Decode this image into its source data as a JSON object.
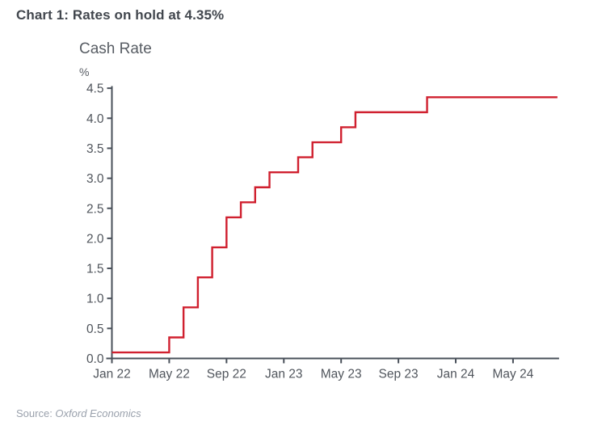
{
  "title": "Chart 1: Rates on hold at 4.35%",
  "source": {
    "prefix": "Source: ",
    "name": "Oxford Economics"
  },
  "chart_data": {
    "type": "line",
    "subtype": "step",
    "title": "Cash Rate",
    "unit": "%",
    "ylim": [
      0.0,
      4.5
    ],
    "y_ticks": [
      0.0,
      0.5,
      1.0,
      1.5,
      2.0,
      2.5,
      3.0,
      3.5,
      4.0,
      4.5
    ],
    "x_ticks": [
      {
        "label": "Jan 22",
        "month": 0
      },
      {
        "label": "May 22",
        "month": 4
      },
      {
        "label": "Sep 22",
        "month": 8
      },
      {
        "label": "Jan 23",
        "month": 12
      },
      {
        "label": "May 23",
        "month": 16
      },
      {
        "label": "Sep 23",
        "month": 20
      },
      {
        "label": "Jan 24",
        "month": 24
      },
      {
        "label": "May 24",
        "month": 28
      }
    ],
    "x_end_month": 31.1,
    "grid": false,
    "legend": "none",
    "axis_color": "#49505a",
    "tick_label_color": "#50555c",
    "series": [
      {
        "name": "Cash Rate",
        "color": "#d0202f",
        "steps": [
          {
            "date": "Jan 22",
            "month": 0,
            "rate": 0.1
          },
          {
            "date": "May 22",
            "month": 4,
            "rate": 0.35
          },
          {
            "date": "Jun 22",
            "month": 5,
            "rate": 0.85
          },
          {
            "date": "Jul 22",
            "month": 6,
            "rate": 1.35
          },
          {
            "date": "Aug 22",
            "month": 7,
            "rate": 1.85
          },
          {
            "date": "Sep 22",
            "month": 8,
            "rate": 2.35
          },
          {
            "date": "Oct 22",
            "month": 9,
            "rate": 2.6
          },
          {
            "date": "Nov 22",
            "month": 10,
            "rate": 2.85
          },
          {
            "date": "Dec 22",
            "month": 11,
            "rate": 3.1
          },
          {
            "date": "Feb 23",
            "month": 13,
            "rate": 3.35
          },
          {
            "date": "Mar 23",
            "month": 14,
            "rate": 3.6
          },
          {
            "date": "May 23",
            "month": 16,
            "rate": 3.85
          },
          {
            "date": "Jun 23",
            "month": 17,
            "rate": 4.1
          },
          {
            "date": "Nov 23",
            "month": 22,
            "rate": 4.35
          }
        ]
      }
    ]
  }
}
